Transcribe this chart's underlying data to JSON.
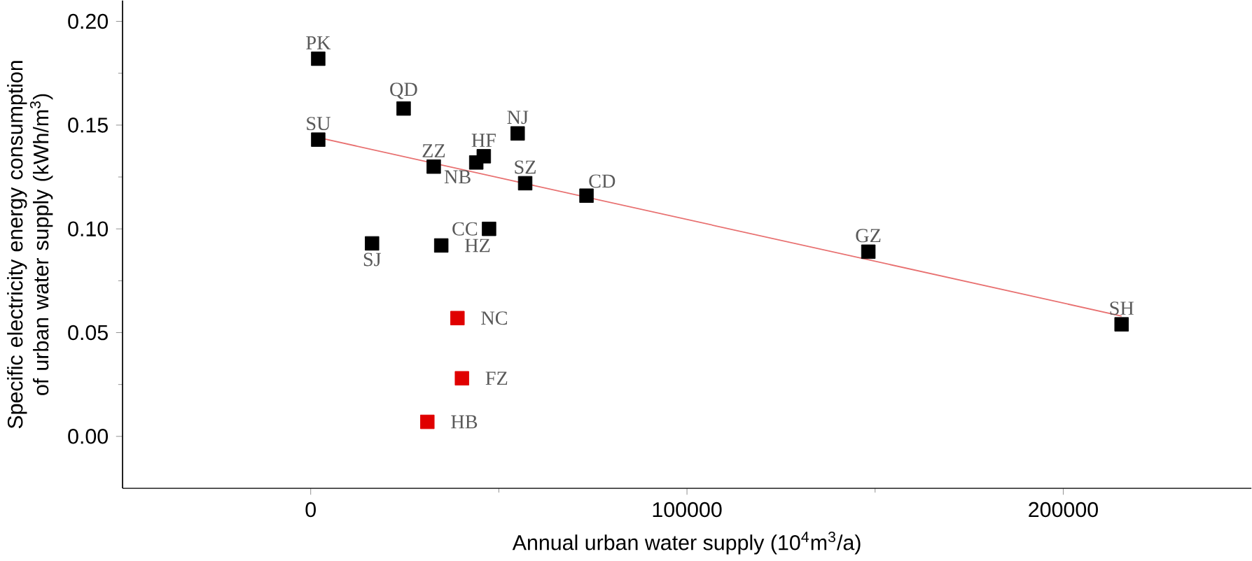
{
  "chart_data": {
    "type": "scatter",
    "xlabel": "Annual urban water supply (10$^{4}$m$^{3}$/a)",
    "ylabel": "Specific electricity energy consumption of urban water supply (kWh/m$^{3}$)",
    "xlim": [
      -50000,
      250000
    ],
    "ylim": [
      -0.025,
      0.21
    ],
    "xticks": [
      0,
      100000,
      200000
    ],
    "yticks": [
      {
        "value": 0,
        "label": "0.00"
      },
      {
        "value": 0.05,
        "label": "0.05"
      },
      {
        "value": 0.1,
        "label": "0.10"
      },
      {
        "value": 0.15,
        "label": "0.15"
      },
      {
        "value": 0.2,
        "label": "0.20"
      }
    ],
    "marker": "square",
    "grid": false,
    "series": [
      {
        "color": "#000000",
        "x": [
          2000,
          24700,
          2000,
          55000,
          32700,
          46000,
          44000,
          57000,
          73300,
          47400,
          16300,
          34700,
          148200,
          215500
        ],
        "values": [
          0.182,
          0.158,
          0.143,
          0.146,
          0.13,
          0.135,
          0.132,
          0.122,
          0.116,
          0.1,
          0.093,
          0.092,
          0.089,
          0.054
        ]
      },
      {
        "color": "#e00000",
        "x": [
          39000,
          40200,
          31000
        ],
        "values": [
          0.057,
          0.028,
          0.007
        ]
      },
      {
        "type": "line",
        "marker": "none",
        "color": "#e87070",
        "x": [
          2000,
          215500
        ],
        "values": [
          0.144,
          0.058
        ]
      }
    ],
    "annotations": [
      {
        "text": "PK",
        "x": 2000,
        "y": 0.182
      },
      {
        "text": "QD",
        "x": 24700,
        "y": 0.158
      },
      {
        "text": "SU",
        "x": 2000,
        "y": 0.143
      },
      {
        "text": "NJ",
        "x": 55000,
        "y": 0.146
      },
      {
        "text": "ZZ",
        "x": 32700,
        "y": 0.13
      },
      {
        "text": "HF",
        "x": 46000,
        "y": 0.135
      },
      {
        "text": "NB",
        "x": 44000,
        "y": 0.132
      },
      {
        "text": "SZ",
        "x": 57000,
        "y": 0.122
      },
      {
        "text": "CD",
        "x": 73300,
        "y": 0.116
      },
      {
        "text": "CC",
        "x": 47400,
        "y": 0.1
      },
      {
        "text": "SJ",
        "x": 16300,
        "y": 0.093
      },
      {
        "text": "HZ",
        "x": 34700,
        "y": 0.092
      },
      {
        "text": "GZ",
        "x": 148200,
        "y": 0.089
      },
      {
        "text": "SH",
        "x": 215500,
        "y": 0.054
      },
      {
        "text": "NC",
        "x": 39000,
        "y": 0.057
      },
      {
        "text": "FZ",
        "x": 40200,
        "y": 0.028
      },
      {
        "text": "HB",
        "x": 31000,
        "y": 0.007
      }
    ]
  }
}
